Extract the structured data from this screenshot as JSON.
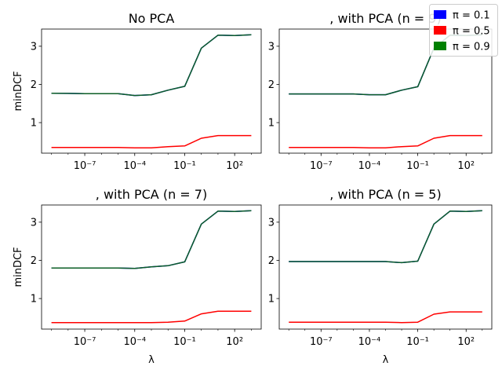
{
  "colors": {
    "pi_0_1": "#0000ff",
    "pi_0_5": "#ff0000",
    "pi_0_9": "#008000",
    "overlap": "#0c5e26",
    "axes": "#000000",
    "background": "#ffffff"
  },
  "legend": {
    "placement": "top-right",
    "items": [
      {
        "label": "π = 0.1",
        "color": "#0000ff"
      },
      {
        "label": "π = 0.5",
        "color": "#ff0000"
      },
      {
        "label": "π = 0.9",
        "color": "#008000"
      }
    ]
  },
  "chart_data": [
    {
      "type": "line",
      "title": "No PCA",
      "xlabel": "",
      "ylabel": "minDCF",
      "xscale": "log",
      "x": [
        1e-09,
        1e-08,
        1e-07,
        1e-06,
        1e-05,
        0.0001,
        0.001,
        0.01,
        0.1,
        1,
        10,
        100,
        1000
      ],
      "x_tick_labels": [
        "10⁻⁷",
        "10⁻⁴",
        "10⁻¹",
        "10²"
      ],
      "y_ticks": [
        "1",
        "2",
        "3"
      ],
      "ylim": [
        0.2,
        3.45
      ],
      "grid": false,
      "series": [
        {
          "name": "π = 0.1",
          "values": [
            1.77,
            1.765,
            1.76,
            1.76,
            1.76,
            1.71,
            1.73,
            1.85,
            1.95,
            2.95,
            3.29,
            3.28,
            3.3
          ]
        },
        {
          "name": "π = 0.5",
          "values": [
            0.35,
            0.35,
            0.35,
            0.35,
            0.35,
            0.34,
            0.34,
            0.37,
            0.39,
            0.59,
            0.66,
            0.66,
            0.66
          ]
        },
        {
          "name": "π = 0.9",
          "values": [
            1.77,
            1.765,
            1.76,
            1.76,
            1.76,
            1.71,
            1.73,
            1.85,
            1.95,
            2.95,
            3.29,
            3.28,
            3.3
          ]
        }
      ]
    },
    {
      "type": "line",
      "title": ", with PCA (n = 9)",
      "xlabel": "",
      "ylabel": "",
      "xscale": "log",
      "x": [
        1e-09,
        1e-08,
        1e-07,
        1e-06,
        1e-05,
        0.0001,
        0.001,
        0.01,
        0.1,
        1,
        10,
        100,
        1000
      ],
      "x_tick_labels": [
        "10⁻⁷",
        "10⁻⁴",
        "10⁻¹",
        "10²"
      ],
      "y_ticks": [
        "1",
        "2",
        "3"
      ],
      "ylim": [
        0.2,
        3.45
      ],
      "grid": false,
      "series": [
        {
          "name": "π = 0.1",
          "values": [
            1.75,
            1.75,
            1.75,
            1.75,
            1.75,
            1.73,
            1.73,
            1.85,
            1.94,
            2.95,
            3.29,
            3.28,
            3.3
          ]
        },
        {
          "name": "π = 0.5",
          "values": [
            0.35,
            0.35,
            0.35,
            0.35,
            0.35,
            0.34,
            0.34,
            0.37,
            0.39,
            0.59,
            0.66,
            0.66,
            0.66
          ]
        },
        {
          "name": "π = 0.9",
          "values": [
            1.75,
            1.75,
            1.75,
            1.75,
            1.75,
            1.73,
            1.73,
            1.85,
            1.94,
            2.95,
            3.29,
            3.28,
            3.3
          ]
        }
      ]
    },
    {
      "type": "line",
      "title": ", with PCA (n = 7)",
      "xlabel": "λ",
      "ylabel": "minDCF",
      "xscale": "log",
      "x": [
        1e-09,
        1e-08,
        1e-07,
        1e-06,
        1e-05,
        0.0001,
        0.001,
        0.01,
        0.1,
        1,
        10,
        100,
        1000
      ],
      "x_tick_labels": [
        "10⁻⁷",
        "10⁻⁴",
        "10⁻¹",
        "10²"
      ],
      "y_ticks": [
        "1",
        "2",
        "3"
      ],
      "ylim": [
        0.2,
        3.45
      ],
      "grid": false,
      "series": [
        {
          "name": "π = 0.1",
          "values": [
            1.8,
            1.8,
            1.8,
            1.8,
            1.8,
            1.79,
            1.83,
            1.86,
            1.96,
            2.95,
            3.29,
            3.28,
            3.3
          ]
        },
        {
          "name": "π = 0.5",
          "values": [
            0.37,
            0.37,
            0.37,
            0.37,
            0.37,
            0.37,
            0.37,
            0.38,
            0.41,
            0.6,
            0.67,
            0.67,
            0.67
          ]
        },
        {
          "name": "π = 0.9",
          "values": [
            1.8,
            1.8,
            1.8,
            1.8,
            1.8,
            1.79,
            1.83,
            1.86,
            1.96,
            2.95,
            3.29,
            3.28,
            3.3
          ]
        }
      ]
    },
    {
      "type": "line",
      "title": ", with PCA (n = 5)",
      "xlabel": "λ",
      "ylabel": "",
      "xscale": "log",
      "x": [
        1e-09,
        1e-08,
        1e-07,
        1e-06,
        1e-05,
        0.0001,
        0.001,
        0.01,
        0.1,
        1,
        10,
        100,
        1000
      ],
      "x_tick_labels": [
        "10⁻⁷",
        "10⁻⁴",
        "10⁻¹",
        "10²"
      ],
      "y_ticks": [
        "1",
        "2",
        "3"
      ],
      "ylim": [
        0.2,
        3.45
      ],
      "grid": false,
      "series": [
        {
          "name": "π = 0.1",
          "values": [
            1.97,
            1.97,
            1.97,
            1.97,
            1.97,
            1.97,
            1.97,
            1.94,
            1.98,
            2.95,
            3.29,
            3.28,
            3.3
          ]
        },
        {
          "name": "π = 0.5",
          "values": [
            0.38,
            0.38,
            0.38,
            0.38,
            0.38,
            0.38,
            0.38,
            0.37,
            0.38,
            0.59,
            0.65,
            0.65,
            0.65
          ]
        },
        {
          "name": "π = 0.9",
          "values": [
            1.97,
            1.97,
            1.97,
            1.97,
            1.97,
            1.97,
            1.97,
            1.94,
            1.98,
            2.95,
            3.29,
            3.28,
            3.3
          ]
        }
      ]
    }
  ]
}
